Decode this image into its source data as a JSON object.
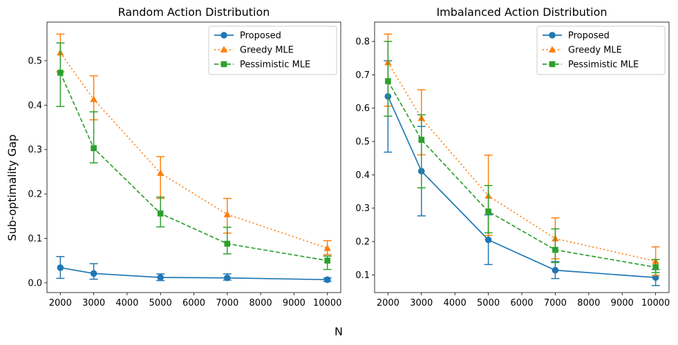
{
  "figure": {
    "ylabel": "Sub-optimality Gap",
    "xlabel": "N"
  },
  "colors": {
    "Proposed": "#1f77b4",
    "Greedy MLE": "#ff7f0e",
    "Pessimistic MLE": "#2ca02c"
  },
  "chart_data": [
    {
      "type": "line",
      "title": "Random Action Distribution",
      "xlabel": "",
      "ylabel": "",
      "x": [
        2000,
        3000,
        5000,
        7000,
        10000
      ],
      "xlim": [
        1600,
        10400
      ],
      "ylim": [
        -0.022,
        0.587
      ],
      "xticks": [
        2000,
        3000,
        4000,
        5000,
        6000,
        7000,
        8000,
        9000,
        10000
      ],
      "yticks": [
        0.0,
        0.1,
        0.2,
        0.3,
        0.4,
        0.5
      ],
      "ytick_labels": [
        "0.0",
        "0.1",
        "0.2",
        "0.3",
        "0.4",
        "0.5"
      ],
      "legend": "top-right",
      "series": [
        {
          "name": "Proposed",
          "style": "solid",
          "marker": "circle",
          "values": [
            0.034,
            0.021,
            0.012,
            0.011,
            0.007
          ],
          "err_low": [
            0.01,
            0.008,
            0.005,
            0.006,
            0.003
          ],
          "err_high": [
            0.059,
            0.043,
            0.02,
            0.02,
            0.011
          ]
        },
        {
          "name": "Greedy MLE",
          "style": "dotted",
          "marker": "triangle",
          "values": [
            0.518,
            0.413,
            0.247,
            0.154,
            0.078
          ],
          "err_low": [
            0.475,
            0.367,
            0.19,
            0.112,
            0.063
          ],
          "err_high": [
            0.56,
            0.466,
            0.284,
            0.19,
            0.095
          ]
        },
        {
          "name": "Pessimistic MLE",
          "style": "dashed",
          "marker": "square",
          "values": [
            0.473,
            0.303,
            0.156,
            0.088,
            0.05
          ],
          "err_low": [
            0.397,
            0.27,
            0.126,
            0.065,
            0.03
          ],
          "err_high": [
            0.54,
            0.385,
            0.193,
            0.125,
            0.06
          ]
        }
      ]
    },
    {
      "type": "line",
      "title": "Imbalanced Action Distribution",
      "xlabel": "",
      "ylabel": "",
      "x": [
        2000,
        3000,
        5000,
        7000,
        10000
      ],
      "xlim": [
        1600,
        10400
      ],
      "ylim": [
        0.047,
        0.858
      ],
      "xticks": [
        2000,
        3000,
        4000,
        5000,
        6000,
        7000,
        8000,
        9000,
        10000
      ],
      "yticks": [
        0.1,
        0.2,
        0.3,
        0.4,
        0.5,
        0.6,
        0.7,
        0.8
      ],
      "ytick_labels": [
        "0.1",
        "0.2",
        "0.3",
        "0.4",
        "0.5",
        "0.6",
        "0.7",
        "0.8"
      ],
      "legend": "top-right",
      "series": [
        {
          "name": "Proposed",
          "style": "solid",
          "marker": "circle",
          "values": [
            0.635,
            0.411,
            0.205,
            0.114,
            0.092
          ],
          "err_low": [
            0.468,
            0.277,
            0.131,
            0.089,
            0.068
          ],
          "err_high": [
            0.742,
            0.545,
            0.28,
            0.14,
            0.116
          ]
        },
        {
          "name": "Greedy MLE",
          "style": "dotted",
          "marker": "triangle",
          "values": [
            0.737,
            0.57,
            0.337,
            0.209,
            0.141
          ],
          "err_low": [
            0.606,
            0.46,
            0.218,
            0.148,
            0.098
          ],
          "err_high": [
            0.822,
            0.655,
            0.459,
            0.271,
            0.184
          ]
        },
        {
          "name": "Pessimistic MLE",
          "style": "dashed",
          "marker": "square",
          "values": [
            0.681,
            0.505,
            0.29,
            0.175,
            0.123
          ],
          "err_low": [
            0.576,
            0.361,
            0.226,
            0.137,
            0.107
          ],
          "err_high": [
            0.8,
            0.58,
            0.368,
            0.238,
            0.146
          ]
        }
      ]
    }
  ]
}
